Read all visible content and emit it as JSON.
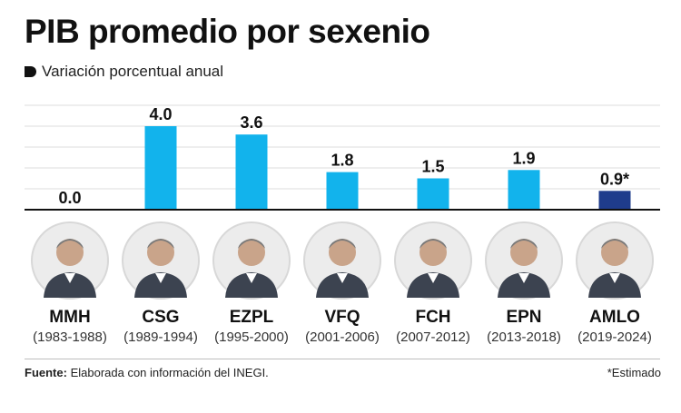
{
  "header": {
    "title": "PIB promedio por sexenio",
    "subtitle": "Variación porcentual anual"
  },
  "chart_data": {
    "type": "bar",
    "categories": [
      "MMH",
      "CSG",
      "EZPL",
      "VFQ",
      "FCH",
      "EPN",
      "AMLO"
    ],
    "periods": [
      "(1983-1988)",
      "(1989-1994)",
      "(1995-2000)",
      "(2001-2006)",
      "(2007-2012)",
      "(2013-2018)",
      "(2019-2024)"
    ],
    "values": [
      0.0,
      4.0,
      3.6,
      1.8,
      1.5,
      1.9,
      0.9
    ],
    "value_labels": [
      "0.0",
      "4.0",
      "3.6",
      "1.8",
      "1.5",
      "1.9",
      "0.9*"
    ],
    "title": "PIB promedio por sexenio",
    "subtitle": "Variación porcentual anual",
    "ylim": [
      0,
      5
    ],
    "grid": true,
    "colors": {
      "standard": "#12b3ec",
      "highlight": "#1f3c8c"
    },
    "highlight_index": 6
  },
  "footer": {
    "source_label": "Fuente:",
    "source_text": " Elaborada con información del INEGI.",
    "footnote": "*Estimado"
  }
}
